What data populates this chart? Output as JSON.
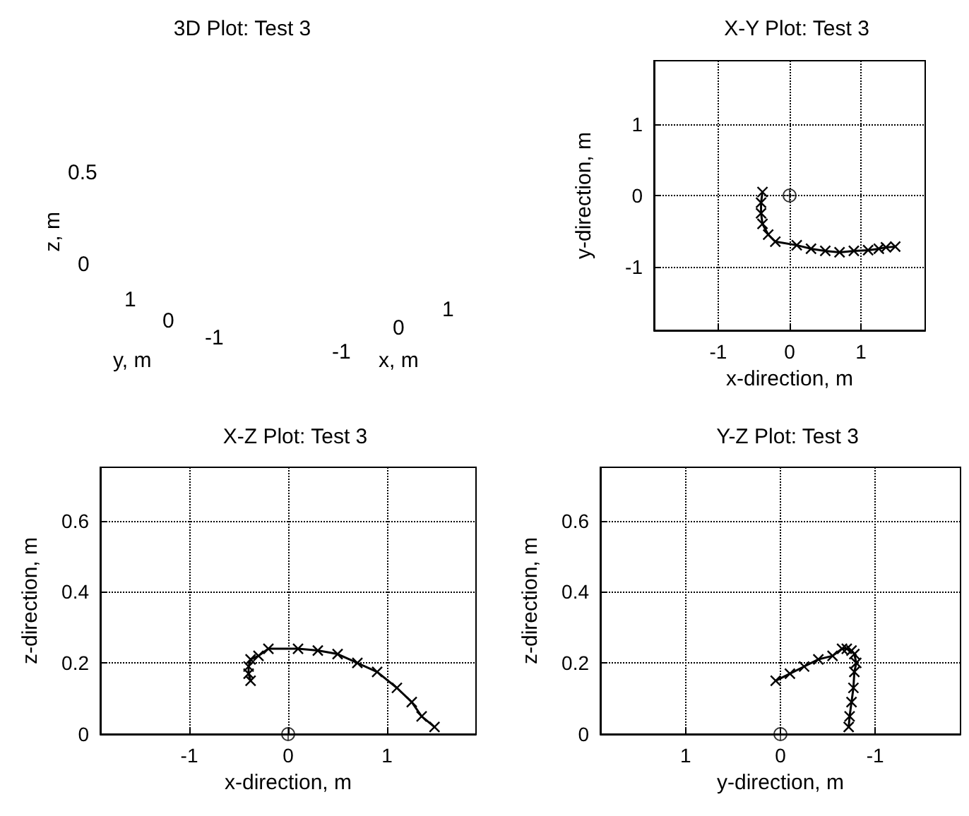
{
  "chart_data": [
    {
      "type": "other",
      "title": "3D Plot: Test 3",
      "annotations": [
        "z, m",
        "0.5",
        "0",
        "1",
        "0",
        "-1",
        "y, m",
        "-1",
        "0",
        "1",
        "x, m"
      ]
    },
    {
      "type": "line",
      "title": "X-Y Plot: Test 3",
      "xlabel": "x-direction, m",
      "ylabel": "y-direction, m",
      "xlim": [
        -1.9,
        1.9
      ],
      "ylim": [
        -1.9,
        1.9
      ],
      "xticks": [
        -1,
        0,
        1
      ],
      "yticks": [
        -1,
        0,
        1
      ],
      "grid": true,
      "line_style": "solid",
      "series": [
        {
          "color": "#000000",
          "marker": "cross",
          "x": [
            -0.38,
            -0.4,
            -0.4,
            -0.38,
            -0.3,
            -0.2,
            0.1,
            0.3,
            0.5,
            0.7,
            0.9,
            1.1,
            1.25,
            1.35,
            1.48
          ],
          "values": [
            0.05,
            -0.1,
            -0.25,
            -0.4,
            -0.55,
            -0.65,
            -0.7,
            -0.75,
            -0.78,
            -0.8,
            -0.78,
            -0.77,
            -0.75,
            -0.73,
            -0.72
          ]
        },
        {
          "type": "scatter",
          "color": "#000000",
          "marker": "circle",
          "x": [
            0
          ],
          "values": [
            0
          ]
        }
      ]
    },
    {
      "type": "line",
      "title": "X-Z Plot: Test 3",
      "xlabel": "x-direction, m",
      "ylabel": "z-direction, m",
      "xlim": [
        -1.9,
        1.9
      ],
      "ylim": [
        0,
        0.75
      ],
      "xticks": [
        -1,
        0,
        1
      ],
      "yticks": [
        0,
        0.2,
        0.4,
        0.6
      ],
      "grid": true,
      "line_style": "solid",
      "series": [
        {
          "color": "#000000",
          "marker": "cross",
          "x": [
            -0.38,
            -0.4,
            -0.4,
            -0.38,
            -0.3,
            -0.2,
            0.1,
            0.3,
            0.5,
            0.7,
            0.9,
            1.1,
            1.25,
            1.35,
            1.48
          ],
          "values": [
            0.15,
            0.17,
            0.19,
            0.21,
            0.22,
            0.24,
            0.24,
            0.235,
            0.225,
            0.2,
            0.175,
            0.13,
            0.09,
            0.05,
            0.02
          ]
        },
        {
          "type": "scatter",
          "color": "#000000",
          "marker": "circle",
          "x": [
            0
          ],
          "values": [
            0
          ]
        }
      ]
    },
    {
      "type": "line",
      "title": "Y-Z Plot: Test 3",
      "xlabel": "y-direction, m",
      "ylabel": "z-direction, m",
      "xlim": [
        1.9,
        -1.9
      ],
      "ylim": [
        0,
        0.75
      ],
      "xticks": [
        1,
        0,
        -1
      ],
      "yticks": [
        0,
        0.2,
        0.4,
        0.6
      ],
      "grid": true,
      "line_style": "solid",
      "series": [
        {
          "color": "#000000",
          "marker": "cross",
          "x": [
            0.05,
            -0.1,
            -0.25,
            -0.4,
            -0.55,
            -0.65,
            -0.7,
            -0.75,
            -0.78,
            -0.8,
            -0.78,
            -0.77,
            -0.75,
            -0.73,
            -0.72
          ],
          "values": [
            0.15,
            0.17,
            0.19,
            0.21,
            0.22,
            0.24,
            0.24,
            0.235,
            0.225,
            0.2,
            0.175,
            0.13,
            0.09,
            0.05,
            0.02
          ]
        },
        {
          "type": "scatter",
          "color": "#000000",
          "marker": "circle",
          "x": [
            0
          ],
          "values": [
            0
          ]
        }
      ]
    }
  ]
}
